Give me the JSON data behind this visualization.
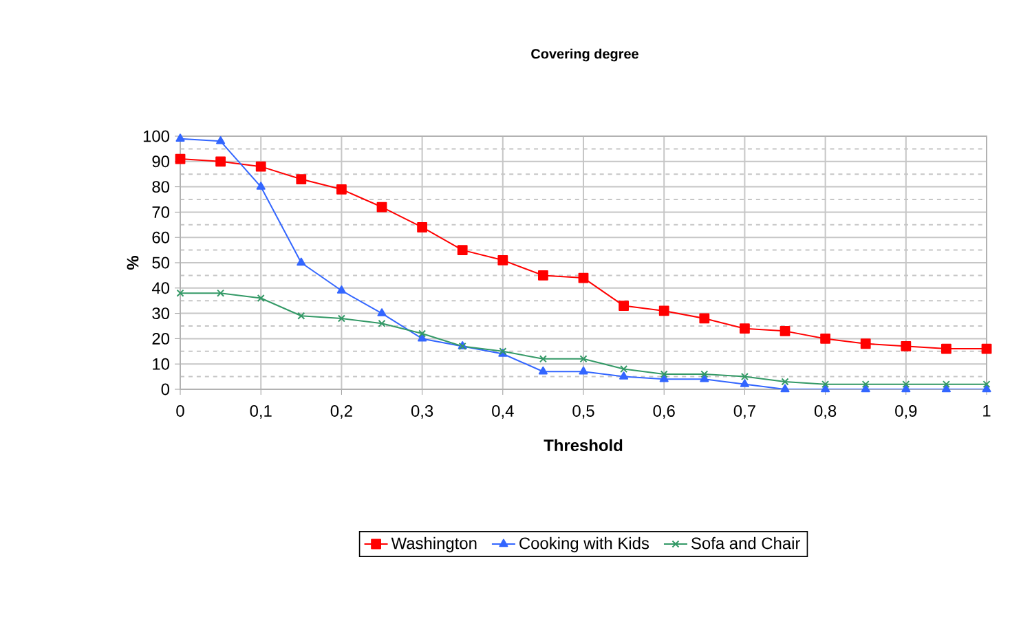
{
  "chart_data": {
    "type": "line",
    "title": "Covering degree",
    "xlabel": "Threshold",
    "ylabel": "%",
    "x": [
      0,
      0.05,
      0.1,
      0.15,
      0.2,
      0.25,
      0.3,
      0.35,
      0.4,
      0.45,
      0.5,
      0.55,
      0.6,
      0.65,
      0.7,
      0.75,
      0.8,
      0.85,
      0.9,
      0.95,
      1
    ],
    "series": [
      {
        "name": "Washington",
        "color": "#ff0000",
        "marker": "square",
        "values": [
          91,
          90,
          88,
          83,
          79,
          72,
          64,
          55,
          51,
          45,
          44,
          33,
          31,
          28,
          24,
          23,
          20,
          18,
          17,
          16,
          16
        ]
      },
      {
        "name": "Cooking with Kids",
        "color": "#3366ff",
        "marker": "triangle",
        "values": [
          99,
          98,
          80,
          50,
          39,
          30,
          20,
          17,
          14,
          7,
          7,
          5,
          4,
          4,
          2,
          0,
          0,
          0,
          0,
          0,
          0
        ]
      },
      {
        "name": "Sofa and Chair",
        "color": "#339966",
        "marker": "cross",
        "values": [
          38,
          38,
          36,
          29,
          28,
          26,
          22,
          17,
          15,
          12,
          12,
          8,
          6,
          6,
          5,
          3,
          2,
          2,
          2,
          2,
          2
        ]
      }
    ],
    "xlim": [
      0,
      1
    ],
    "ylim": [
      0,
      100
    ],
    "xticks": [
      0,
      {
        "value": 0.1,
        "label": "0,1"
      },
      {
        "value": 0.2,
        "label": "0,2"
      },
      {
        "value": 0.3,
        "label": "0,3"
      },
      {
        "value": 0.4,
        "label": "0,4"
      },
      {
        "value": 0.5,
        "label": "0,5"
      },
      {
        "value": 0.6,
        "label": "0,6"
      },
      {
        "value": 0.7,
        "label": "0,7"
      },
      {
        "value": 0.8,
        "label": "0,8"
      },
      {
        "value": 0.9,
        "label": "0,9"
      },
      1
    ],
    "yticks": [
      0,
      {
        "value": 5,
        "label": null
      },
      10,
      {
        "value": 15,
        "label": null
      },
      20,
      {
        "value": 25,
        "label": null
      },
      30,
      {
        "value": 35,
        "label": null
      },
      40,
      {
        "value": 45,
        "label": null
      },
      50,
      {
        "value": 55,
        "label": null
      },
      60,
      {
        "value": 65,
        "label": null
      },
      70,
      {
        "value": 75,
        "label": null
      },
      80,
      {
        "value": 85,
        "label": null
      },
      90,
      {
        "value": 95,
        "label": null
      },
      100
    ],
    "grid": true,
    "legend": "bottom",
    "line_style": "solid"
  }
}
